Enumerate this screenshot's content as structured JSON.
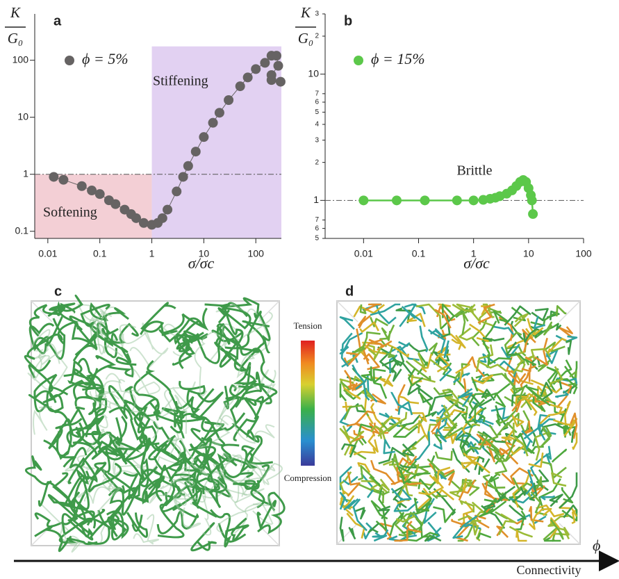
{
  "chart_data": [
    {
      "type": "scatter",
      "title": "a",
      "ylabel": {
        "numerator": "K",
        "denominator": "G₀"
      },
      "xlabel": "σ/σc",
      "xlog": true,
      "ylog": true,
      "xlim": [
        0.0056,
        310
      ],
      "ylim": [
        0.075,
        650
      ],
      "xticks": [
        0.01,
        0.1,
        1,
        10,
        100
      ],
      "yticks": [
        0.1,
        1,
        10,
        100
      ],
      "reference_line": 1,
      "regions": [
        {
          "label": "Softening",
          "color": "#f3cfd5",
          "x": [
            0.0056,
            1
          ],
          "y": [
            0.075,
            1
          ]
        },
        {
          "label": "Stiffening",
          "color": "#e2d1f2",
          "x": [
            1,
            310
          ],
          "y": [
            0.075,
            175
          ]
        }
      ],
      "legend": "upper left",
      "series": [
        {
          "name": "ϕ = 5%",
          "color": "#666363",
          "x": [
            0.013,
            0.02,
            0.045,
            0.07,
            0.1,
            0.15,
            0.2,
            0.3,
            0.4,
            0.5,
            0.7,
            1,
            1.3,
            1.6,
            2,
            3,
            4,
            5,
            7,
            10,
            15,
            20,
            30,
            50,
            70,
            100,
            150,
            200,
            250,
            270,
            200,
            200,
            300
          ],
          "values": [
            0.9,
            0.8,
            0.62,
            0.52,
            0.45,
            0.35,
            0.3,
            0.24,
            0.2,
            0.17,
            0.14,
            0.13,
            0.14,
            0.17,
            0.24,
            0.5,
            0.9,
            1.4,
            2.5,
            4.5,
            8,
            12,
            20,
            35,
            50,
            70,
            90,
            120,
            120,
            80,
            55,
            45,
            42
          ]
        }
      ]
    },
    {
      "type": "scatter",
      "title": "b",
      "ylabel": {
        "numerator": "K",
        "denominator": "G₀"
      },
      "xlabel": "σ/σc",
      "xlog": true,
      "ylog": true,
      "xlim": [
        0.002,
        100
      ],
      "ylim": [
        0.5,
        30
      ],
      "xticks": [
        0.01,
        0.1,
        1,
        10,
        100
      ],
      "yticks": [
        {
          "value": 0.5,
          "label": "5"
        },
        {
          "value": 0.6,
          "label": "6"
        },
        {
          "value": 0.7,
          "label": "7"
        },
        1,
        2,
        3,
        4,
        5,
        6,
        7,
        10,
        {
          "value": 20,
          "label": "2"
        },
        {
          "value": 30,
          "label": "3"
        }
      ],
      "reference_line": 1,
      "annotation": "Brittle",
      "legend": "upper left",
      "series": [
        {
          "name": "ϕ = 15%",
          "color": "#5cc84a",
          "x": [
            0.01,
            0.04,
            0.13,
            0.5,
            1,
            1.5,
            2,
            2.5,
            3,
            4,
            5,
            6,
            7,
            8,
            9,
            10,
            11,
            11.5,
            12
          ],
          "values": [
            1,
            1,
            1,
            1,
            1,
            1.01,
            1.03,
            1.05,
            1.08,
            1.13,
            1.2,
            1.3,
            1.4,
            1.45,
            1.4,
            1.25,
            1.1,
            1.0,
            0.78
          ]
        }
      ]
    }
  ],
  "panels": {
    "c": "c",
    "d": "d"
  },
  "colorbar": {
    "top": "Tension",
    "bottom": "Compression"
  },
  "arrow": {
    "symbol": "ϕ",
    "label": "Connectivity"
  }
}
